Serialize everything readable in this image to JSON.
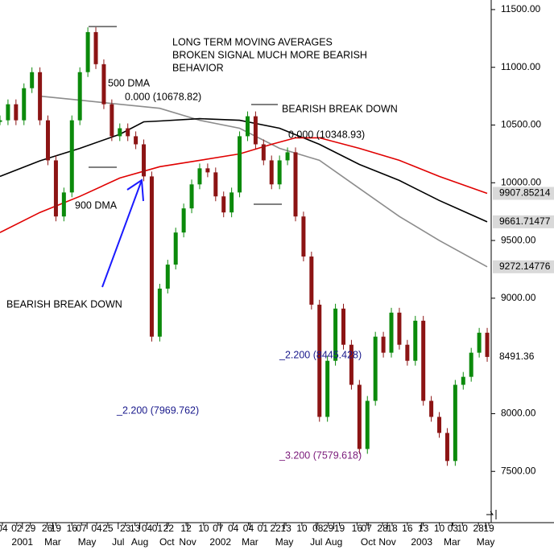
{
  "chart_data": {
    "type": "price-chart",
    "ylim": [
      7056,
      11583
    ],
    "xlim": [
      0,
      61.5
    ],
    "yticks": [
      {
        "value": 11500,
        "label": "11500.00"
      },
      {
        "value": 11000,
        "label": "11000.00"
      },
      {
        "value": 10500,
        "label": "10500.00"
      },
      {
        "value": 10000,
        "label": "10000.00"
      },
      {
        "value": 9500,
        "label": "9500.00"
      },
      {
        "value": 9000,
        "label": "9000.00"
      },
      {
        "value": 8000,
        "label": "8000.00"
      },
      {
        "value": 7500,
        "label": "7500.00"
      }
    ],
    "xticks": [
      {
        "value": 0.3,
        "label": "04"
      },
      {
        "value": 2.1,
        "label": "02"
      },
      {
        "value": 3.8,
        "label": "29"
      },
      {
        "value": 5.9,
        "label": "26"
      },
      {
        "value": 7.0,
        "label": "19"
      },
      {
        "value": 9.0,
        "label": "16"
      },
      {
        "value": 10.2,
        "label": "07"
      },
      {
        "value": 12.1,
        "label": "04"
      },
      {
        "value": 13.5,
        "label": "25"
      },
      {
        "value": 15.7,
        "label": "23"
      },
      {
        "value": 16.9,
        "label": "13"
      },
      {
        "value": 18.4,
        "label": "04"
      },
      {
        "value": 19.7,
        "label": "01"
      },
      {
        "value": 21.1,
        "label": "22"
      },
      {
        "value": 23.3,
        "label": "12"
      },
      {
        "value": 25.5,
        "label": "10"
      },
      {
        "value": 27.3,
        "label": "07"
      },
      {
        "value": 29.2,
        "label": "04"
      },
      {
        "value": 31.1,
        "label": "04"
      },
      {
        "value": 32.9,
        "label": "01"
      },
      {
        "value": 34.5,
        "label": "22"
      },
      {
        "value": 35.8,
        "label": "13"
      },
      {
        "value": 37.8,
        "label": "10"
      },
      {
        "value": 39.8,
        "label": "08"
      },
      {
        "value": 41.1,
        "label": "29"
      },
      {
        "value": 42.5,
        "label": "19"
      },
      {
        "value": 44.7,
        "label": "16"
      },
      {
        "value": 45.9,
        "label": "07"
      },
      {
        "value": 47.9,
        "label": "28"
      },
      {
        "value": 49.1,
        "label": "18"
      },
      {
        "value": 51.0,
        "label": "16"
      },
      {
        "value": 53.0,
        "label": "13"
      },
      {
        "value": 55.0,
        "label": "10"
      },
      {
        "value": 56.7,
        "label": "03"
      },
      {
        "value": 57.9,
        "label": "10"
      },
      {
        "value": 59.9,
        "label": "28"
      },
      {
        "value": 61.2,
        "label": "19"
      }
    ],
    "xticks_periods": [
      {
        "value": 2.8,
        "label": "2001"
      },
      {
        "value": 6.6,
        "label": "Mar"
      },
      {
        "value": 10.9,
        "label": "May"
      },
      {
        "value": 14.8,
        "label": "Jul"
      },
      {
        "value": 17.5,
        "label": "Aug"
      },
      {
        "value": 20.9,
        "label": "Oct"
      },
      {
        "value": 23.5,
        "label": "Nov"
      },
      {
        "value": 27.6,
        "label": "2002"
      },
      {
        "value": 31.3,
        "label": "Mar"
      },
      {
        "value": 35.6,
        "label": "May"
      },
      {
        "value": 39.6,
        "label": "Jul"
      },
      {
        "value": 41.8,
        "label": "Aug"
      },
      {
        "value": 46.1,
        "label": "Oct"
      },
      {
        "value": 48.5,
        "label": "Nov"
      },
      {
        "value": 52.8,
        "label": "2003"
      },
      {
        "value": 56.6,
        "label": "Mar"
      },
      {
        "value": 60.8,
        "label": "May"
      }
    ],
    "price": {
      "up_color": "#0b8a0b",
      "down_color": "#8c1414",
      "values": [
        10541,
        10680,
        10541,
        10819,
        10958,
        10541,
        10194,
        9708,
        9916,
        10541,
        10958,
        11305,
        11027,
        10680,
        10403,
        10472,
        10403,
        10333,
        10055,
        8667,
        9083,
        9291,
        9569,
        9778,
        9986,
        10125,
        10090,
        9882,
        9743,
        9916,
        10403,
        10576,
        10333,
        10194,
        9986,
        10194,
        10264,
        9708,
        9361,
        8944,
        7972,
        8458,
        8910,
        8597,
        8250,
        7694,
        8111,
        8667,
        8528,
        8875,
        8597,
        8458,
        8805,
        8111,
        7972,
        7833,
        7590,
        8250,
        8319,
        8528,
        8701,
        8491.36
      ]
    },
    "series": [
      {
        "color": "#8c8c8c",
        "x": [
          5,
          10,
          15,
          20,
          25,
          30,
          35,
          40,
          45,
          50,
          55,
          61
        ],
        "values": [
          10750,
          10715,
          10680,
          10645,
          10541,
          10472,
          10298,
          10194,
          9951,
          9708,
          9500,
          9272.14776
        ]
      },
      {
        "color": "#000000",
        "x": [
          0,
          5,
          10,
          15,
          18,
          20,
          25,
          30,
          35,
          40,
          45,
          50,
          55,
          61
        ],
        "values": [
          10055,
          10190,
          10298,
          10420,
          10528,
          10535,
          10555,
          10541,
          10472,
          10333,
          10159,
          10020,
          9847,
          9661.71477
        ]
      },
      {
        "color": "#e00000",
        "x": [
          0,
          5,
          10,
          15,
          20,
          25,
          30,
          34,
          37,
          40,
          45,
          50,
          55,
          61
        ],
        "values": [
          9569,
          9743,
          9882,
          10041,
          10139,
          10194,
          10250,
          10333,
          10389,
          10389,
          10298,
          10194,
          10055,
          9907.85214
        ]
      }
    ],
    "annotations": {
      "headline": [
        "LONG TERM MOVING AVERAGES",
        "BROKEN SIGNAL MUCH MORE BEARISH",
        "BEHAVIOR"
      ],
      "dma500": "500 DMA",
      "dma900": "900 DMA",
      "level1": "0.000 (10678.82)",
      "level2": "0.000 (10348.93)",
      "break1": "BEARISH BREAK DOWN",
      "break2": "BEARISH BREAK DOWN",
      "fib1": "_2.200 (7969.762)",
      "fib2": "_2.200 (8445.428)",
      "fib3": "_3.200 (7579.618)"
    }
  }
}
